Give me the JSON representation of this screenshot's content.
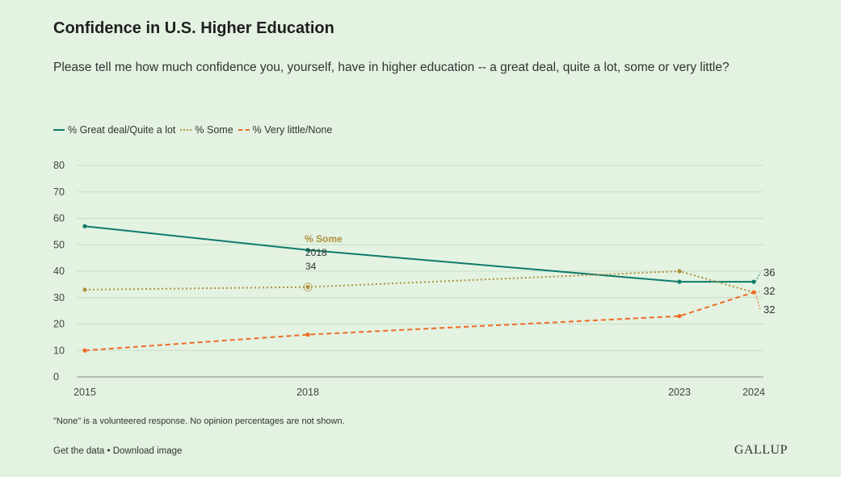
{
  "title": "Confidence in U.S. Higher Education",
  "subtitle": "Please tell me how much confidence you, yourself, have in higher education -- a great deal, quite a lot, some or very little?",
  "note": "\"None\" is a volunteered response. No opinion percentages are not shown.",
  "footer": {
    "get_data": "Get the data",
    "separator": "•",
    "download": "Download image",
    "brand": "GALLUP"
  },
  "tooltip": {
    "series": "% Some",
    "x": "2018",
    "y": "34"
  },
  "chart_data": {
    "type": "line",
    "x": [
      2015,
      2018,
      2023,
      2024
    ],
    "series": [
      {
        "name": "% Great deal/Quite a lot",
        "values": [
          57,
          48,
          36,
          36
        ],
        "color": "#0f7a6a",
        "style": "solid",
        "end_label": "36"
      },
      {
        "name": "% Some",
        "values": [
          33,
          34,
          40,
          32
        ],
        "color": "#b0903c",
        "style": "dotted",
        "end_label": "32"
      },
      {
        "name": "% Very little/None",
        "values": [
          10,
          16,
          23,
          32
        ],
        "color": "#ef6b24",
        "style": "dashed",
        "end_label": "32"
      }
    ],
    "ylim": [
      0,
      80
    ],
    "yticks": [
      0,
      10,
      20,
      30,
      40,
      50,
      60,
      70,
      80
    ],
    "xticks": [
      "2015",
      "2018",
      "2023",
      "2024"
    ],
    "grid": true,
    "legend_position": "top-left"
  }
}
